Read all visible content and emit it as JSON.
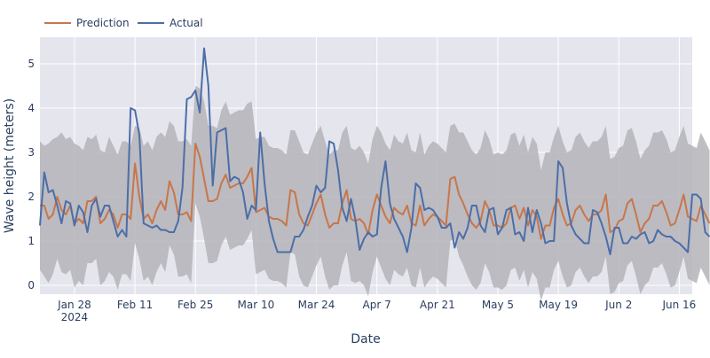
{
  "chart_data": {
    "type": "line",
    "xlabel": "Date",
    "ylabel": "Wave height (meters)",
    "x_start": "2024-01-20",
    "x_range": [
      "2024-01-20",
      "2024-06-19"
    ],
    "ylim": [
      -0.2,
      5.6
    ],
    "y_ticks": [
      0,
      1,
      2,
      3,
      4,
      5
    ],
    "x_ticks": [
      {
        "date": "2024-01-28",
        "label": "Jan 28",
        "sublabel": "2024"
      },
      {
        "date": "2024-02-11",
        "label": "Feb 11"
      },
      {
        "date": "2024-02-25",
        "label": "Feb 25"
      },
      {
        "date": "2024-03-10",
        "label": "Mar 10"
      },
      {
        "date": "2024-03-24",
        "label": "Mar 24"
      },
      {
        "date": "2024-04-07",
        "label": "Apr 7"
      },
      {
        "date": "2024-04-21",
        "label": "Apr 21"
      },
      {
        "date": "2024-05-05",
        "label": "May 5"
      },
      {
        "date": "2024-05-19",
        "label": "May 19"
      },
      {
        "date": "2024-06-02",
        "label": "Jun 2"
      },
      {
        "date": "2024-06-16",
        "label": "Jun 16"
      }
    ],
    "grid": true,
    "legend_position": "top-left",
    "colors": {
      "prediction": "#c8764a",
      "actual": "#4c6ea8",
      "band": "#b4b4b8",
      "plot_bg": "#e5e5ee",
      "grid": "#ffffff"
    },
    "series": [
      {
        "name": "Prediction",
        "values": [
          1.8,
          1.8,
          1.5,
          1.6,
          2.0,
          1.7,
          1.6,
          1.8,
          1.4,
          1.5,
          1.4,
          1.9,
          1.9,
          2.0,
          1.4,
          1.5,
          1.7,
          1.6,
          1.3,
          1.6,
          1.6,
          1.5,
          2.75,
          2.0,
          1.5,
          1.6,
          1.4,
          1.7,
          1.9,
          1.7,
          2.35,
          2.1,
          1.6,
          1.6,
          1.65,
          1.45,
          3.2,
          2.9,
          2.4,
          1.9,
          1.9,
          1.95,
          2.3,
          2.5,
          2.2,
          2.25,
          2.3,
          2.3,
          2.45,
          2.65,
          1.65,
          1.7,
          1.75,
          1.55,
          1.5,
          1.5,
          1.45,
          1.35,
          2.15,
          2.1,
          1.6,
          1.4,
          1.35,
          1.6,
          1.85,
          2.05,
          1.6,
          1.3,
          1.4,
          1.4,
          1.85,
          2.15,
          1.5,
          1.45,
          1.5,
          1.4,
          1.15,
          1.7,
          2.05,
          1.8,
          1.55,
          1.4,
          1.75,
          1.65,
          1.6,
          1.8,
          1.4,
          1.35,
          1.8,
          1.35,
          1.5,
          1.6,
          1.55,
          1.45,
          1.35,
          2.4,
          2.45,
          2.05,
          1.85,
          1.6,
          1.4,
          1.3,
          1.45,
          1.9,
          1.7,
          1.35,
          1.35,
          1.3,
          1.4,
          1.75,
          1.8,
          1.5,
          1.75,
          1.35,
          1.7,
          1.55,
          1.05,
          1.35,
          1.35,
          1.75,
          1.95,
          1.6,
          1.35,
          1.4,
          1.7,
          1.8,
          1.6,
          1.45,
          1.6,
          1.6,
          1.7,
          2.05,
          1.2,
          1.25,
          1.45,
          1.5,
          1.85,
          1.95,
          1.6,
          1.2,
          1.4,
          1.5,
          1.8,
          1.8,
          1.9,
          1.65,
          1.35,
          1.4,
          1.7,
          2.05,
          1.55,
          1.5,
          1.45,
          1.8,
          1.6,
          1.4
        ]
      },
      {
        "name": "Actual",
        "values": [
          1.35,
          2.55,
          2.1,
          2.15,
          1.8,
          1.4,
          1.9,
          1.85,
          1.35,
          1.8,
          1.65,
          1.2,
          1.8,
          1.95,
          1.55,
          1.8,
          1.8,
          1.45,
          1.1,
          1.25,
          1.1,
          4.0,
          3.95,
          3.4,
          1.4,
          1.35,
          1.3,
          1.35,
          1.25,
          1.25,
          1.2,
          1.2,
          1.45,
          2.2,
          4.2,
          4.25,
          4.4,
          3.9,
          5.35,
          4.5,
          2.25,
          3.45,
          3.5,
          3.55,
          2.35,
          2.45,
          2.4,
          2.1,
          1.5,
          1.8,
          1.7,
          3.45,
          2.3,
          1.45,
          1.05,
          0.75,
          0.75,
          0.75,
          0.75,
          1.1,
          1.1,
          1.25,
          1.55,
          1.8,
          2.25,
          2.1,
          2.2,
          3.25,
          3.2,
          2.6,
          1.75,
          1.45,
          1.95,
          1.5,
          0.8,
          1.05,
          1.2,
          1.1,
          1.15,
          2.2,
          2.8,
          1.85,
          1.5,
          1.3,
          1.1,
          0.75,
          1.3,
          2.3,
          2.2,
          1.7,
          1.75,
          1.7,
          1.55,
          1.3,
          1.3,
          1.4,
          0.85,
          1.2,
          1.05,
          1.3,
          1.8,
          1.8,
          1.35,
          1.2,
          1.7,
          1.75,
          1.15,
          1.3,
          1.7,
          1.75,
          1.15,
          1.2,
          1.0,
          1.75,
          1.2,
          1.7,
          1.4,
          0.95,
          1.0,
          1.0,
          2.8,
          2.65,
          1.85,
          1.35,
          1.15,
          1.05,
          0.95,
          0.95,
          1.7,
          1.65,
          1.4,
          1.1,
          0.7,
          1.3,
          1.3,
          0.95,
          0.95,
          1.1,
          1.05,
          1.15,
          1.2,
          0.95,
          1.0,
          1.25,
          1.15,
          1.1,
          1.1,
          1.0,
          0.95,
          0.85,
          0.75,
          2.05,
          2.05,
          1.95,
          1.2,
          1.1
        ]
      }
    ],
    "band": {
      "upper": [
        3.25,
        3.15,
        3.2,
        3.3,
        3.35,
        3.45,
        3.3,
        3.35,
        3.2,
        3.15,
        3.05,
        3.35,
        3.3,
        3.4,
        3.05,
        3.0,
        3.35,
        3.15,
        2.95,
        3.25,
        3.25,
        3.15,
        3.6,
        3.55,
        3.15,
        3.25,
        3.05,
        3.35,
        3.45,
        3.35,
        3.7,
        3.6,
        3.25,
        3.25,
        3.3,
        3.15,
        4.5,
        4.45,
        4.15,
        3.6,
        3.6,
        3.55,
        3.95,
        4.15,
        3.85,
        3.9,
        3.95,
        3.95,
        4.1,
        4.15,
        3.3,
        3.35,
        3.35,
        3.15,
        3.1,
        3.1,
        3.05,
        2.95,
        3.5,
        3.5,
        3.25,
        3.0,
        2.95,
        3.2,
        3.45,
        3.6,
        3.25,
        2.95,
        3.05,
        3.05,
        3.45,
        3.6,
        3.1,
        3.05,
        3.15,
        3.0,
        2.75,
        3.3,
        3.6,
        3.45,
        3.2,
        3.05,
        3.4,
        3.25,
        3.2,
        3.45,
        3.05,
        3.0,
        3.45,
        2.95,
        3.15,
        3.25,
        3.2,
        3.1,
        3.0,
        3.6,
        3.65,
        3.45,
        3.45,
        3.25,
        3.05,
        2.95,
        3.1,
        3.5,
        3.3,
        2.95,
        3.0,
        2.95,
        3.05,
        3.4,
        3.45,
        3.15,
        3.4,
        3.0,
        3.35,
        3.2,
        2.6,
        3.0,
        3.0,
        3.35,
        3.6,
        3.25,
        3.0,
        3.05,
        3.35,
        3.45,
        3.25,
        3.1,
        3.25,
        3.25,
        3.35,
        3.6,
        2.85,
        2.9,
        3.1,
        3.15,
        3.5,
        3.55,
        3.25,
        2.85,
        3.05,
        3.15,
        3.45,
        3.45,
        3.5,
        3.3,
        3.0,
        3.05,
        3.35,
        3.6,
        3.2,
        3.15,
        3.1,
        3.45,
        3.25,
        3.05
      ],
      "lower": [
        0.35,
        0.2,
        0.05,
        0.25,
        0.6,
        0.3,
        0.25,
        0.35,
        -0.05,
        0.1,
        0.0,
        0.5,
        0.5,
        0.6,
        0.0,
        0.1,
        0.3,
        0.2,
        -0.1,
        0.25,
        0.25,
        0.1,
        0.95,
        0.6,
        0.1,
        0.2,
        0.0,
        0.3,
        0.5,
        0.3,
        0.9,
        0.7,
        0.2,
        0.2,
        0.25,
        0.05,
        1.85,
        1.55,
        1.05,
        0.5,
        0.5,
        0.55,
        0.9,
        1.1,
        0.8,
        0.85,
        0.9,
        0.9,
        1.05,
        1.25,
        0.25,
        0.3,
        0.35,
        0.15,
        0.1,
        0.1,
        0.05,
        -0.05,
        0.75,
        0.7,
        0.2,
        0.0,
        -0.05,
        0.2,
        0.45,
        0.65,
        0.2,
        -0.1,
        0.0,
        0.0,
        0.45,
        0.75,
        0.1,
        0.05,
        0.1,
        0.0,
        -0.25,
        0.3,
        0.65,
        0.4,
        0.15,
        0.0,
        0.35,
        0.25,
        0.2,
        0.4,
        0.0,
        -0.05,
        0.4,
        -0.05,
        0.1,
        0.2,
        0.15,
        0.05,
        -0.05,
        1.0,
        1.05,
        0.65,
        0.45,
        0.2,
        0.0,
        -0.1,
        0.05,
        0.5,
        0.3,
        -0.05,
        -0.05,
        -0.1,
        0.0,
        0.35,
        0.4,
        0.1,
        0.35,
        -0.05,
        0.3,
        0.15,
        -0.35,
        -0.05,
        -0.05,
        0.35,
        0.55,
        0.2,
        -0.05,
        0.0,
        0.3,
        0.4,
        0.2,
        0.05,
        0.2,
        0.2,
        0.3,
        0.65,
        -0.2,
        -0.15,
        0.05,
        0.1,
        0.45,
        0.55,
        0.2,
        -0.2,
        0.0,
        0.1,
        0.4,
        0.4,
        0.5,
        0.25,
        -0.05,
        0.0,
        0.3,
        0.65,
        0.15,
        0.1,
        0.05,
        0.4,
        0.2,
        0.0
      ]
    }
  },
  "legend": {
    "prediction_label": "Prediction",
    "actual_label": "Actual"
  }
}
